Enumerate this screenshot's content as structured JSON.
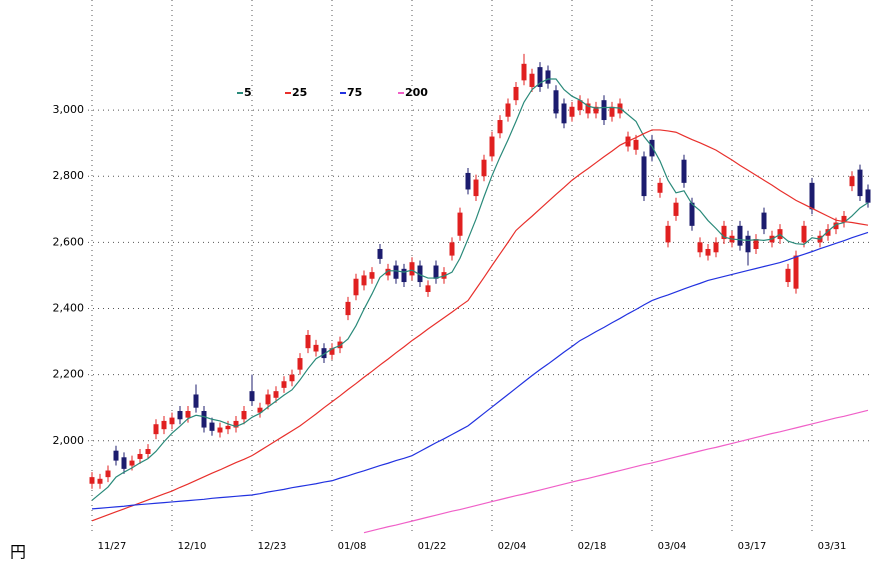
{
  "chart_data": {
    "type": "candlestick",
    "ylabel": "円",
    "ylim": [
      1715,
      3333
    ],
    "yticks": [
      {
        "value": 2000,
        "label": "2,000"
      },
      {
        "value": 2200,
        "label": "2,200"
      },
      {
        "value": 2400,
        "label": "2,400"
      },
      {
        "value": 2600,
        "label": "2,600"
      },
      {
        "value": 2800,
        "label": "2,800"
      },
      {
        "value": 3000,
        "label": "3,000"
      }
    ],
    "grid": true,
    "up_color": "#e02020",
    "down_color": "#1c1c6e",
    "categories": [
      "11/27",
      null,
      null,
      null,
      null,
      null,
      null,
      null,
      null,
      null,
      "12/10",
      null,
      null,
      null,
      null,
      null,
      null,
      null,
      null,
      null,
      "12/23",
      null,
      null,
      null,
      null,
      null,
      null,
      null,
      null,
      null,
      "01/08",
      null,
      null,
      null,
      null,
      null,
      null,
      null,
      null,
      null,
      "01/22",
      null,
      null,
      null,
      null,
      null,
      null,
      null,
      null,
      null,
      "02/04",
      null,
      null,
      null,
      null,
      null,
      null,
      null,
      null,
      null,
      "02/18",
      null,
      null,
      null,
      null,
      null,
      null,
      null,
      null,
      null,
      "03/04",
      null,
      null,
      null,
      null,
      null,
      null,
      null,
      null,
      null,
      "03/17",
      null,
      null,
      null,
      null,
      null,
      null,
      null,
      null,
      null,
      "03/31",
      null,
      null,
      null,
      null,
      null,
      null,
      null
    ],
    "open": [
      1870,
      1870,
      1890,
      1970,
      1950,
      1925,
      1945,
      1960,
      2020,
      2035,
      2050,
      2090,
      2070,
      2140,
      2090,
      2055,
      2025,
      2035,
      2040,
      2065,
      2150,
      2085,
      2110,
      2130,
      2160,
      2180,
      2215,
      2280,
      2270,
      2280,
      2260,
      2280,
      2380,
      2440,
      2470,
      2490,
      2580,
      2500,
      2530,
      2520,
      2500,
      2530,
      2450,
      2530,
      2490,
      2560,
      2620,
      2810,
      2740,
      2800,
      2860,
      2930,
      2980,
      3030,
      3090,
      3070,
      3130,
      3120,
      3060,
      3020,
      2980,
      3000,
      2990,
      2990,
      3030,
      2980,
      2990,
      2890,
      2880,
      2860,
      2910,
      2750,
      2600,
      2680,
      2850,
      2720,
      2570,
      2560,
      2570,
      2610,
      2600,
      2650,
      2620,
      2580,
      2690,
      2600,
      2610,
      2480,
      2460,
      2600,
      2780,
      2600,
      2620,
      2640,
      2660,
      2770,
      2820,
      2760
    ],
    "high": [
      1905,
      1900,
      1925,
      1985,
      1965,
      1955,
      1975,
      1990,
      2065,
      2075,
      2085,
      2105,
      2105,
      2170,
      2105,
      2070,
      2055,
      2060,
      2075,
      2105,
      2200,
      2115,
      2155,
      2165,
      2195,
      2215,
      2265,
      2335,
      2305,
      2295,
      2295,
      2315,
      2435,
      2505,
      2515,
      2525,
      2595,
      2535,
      2545,
      2535,
      2555,
      2545,
      2485,
      2545,
      2525,
      2615,
      2705,
      2825,
      2805,
      2865,
      2935,
      2985,
      3035,
      3085,
      3170,
      3125,
      3145,
      3135,
      3075,
      3035,
      3025,
      3045,
      3035,
      3025,
      3045,
      3025,
      3035,
      2935,
      2925,
      2875,
      2925,
      2795,
      2665,
      2735,
      2865,
      2735,
      2615,
      2595,
      2615,
      2665,
      2635,
      2665,
      2635,
      2625,
      2705,
      2635,
      2655,
      2535,
      2575,
      2665,
      2795,
      2635,
      2655,
      2675,
      2695,
      2815,
      2835,
      2775
    ],
    "low": [
      1855,
      1855,
      1875,
      1925,
      1900,
      1910,
      1930,
      1945,
      2005,
      2020,
      2035,
      2050,
      2055,
      2085,
      2025,
      2015,
      2010,
      2020,
      2025,
      2050,
      2105,
      2070,
      2095,
      2115,
      2145,
      2165,
      2200,
      2265,
      2255,
      2235,
      2245,
      2265,
      2365,
      2425,
      2455,
      2475,
      2535,
      2485,
      2475,
      2465,
      2485,
      2465,
      2435,
      2475,
      2475,
      2545,
      2605,
      2745,
      2725,
      2785,
      2845,
      2915,
      2965,
      3015,
      3075,
      3055,
      3055,
      3065,
      2975,
      2945,
      2965,
      2985,
      2975,
      2975,
      2955,
      2965,
      2975,
      2875,
      2865,
      2725,
      2845,
      2735,
      2585,
      2665,
      2765,
      2635,
      2555,
      2545,
      2555,
      2595,
      2585,
      2575,
      2530,
      2565,
      2625,
      2585,
      2595,
      2465,
      2445,
      2585,
      2685,
      2585,
      2605,
      2625,
      2645,
      2755,
      2725,
      2705
    ],
    "close": [
      1890,
      1885,
      1910,
      1940,
      1915,
      1940,
      1960,
      1975,
      2050,
      2060,
      2070,
      2065,
      2090,
      2100,
      2040,
      2030,
      2040,
      2045,
      2060,
      2090,
      2120,
      2100,
      2140,
      2150,
      2180,
      2200,
      2250,
      2320,
      2290,
      2250,
      2280,
      2300,
      2420,
      2490,
      2500,
      2510,
      2550,
      2520,
      2490,
      2480,
      2540,
      2480,
      2470,
      2490,
      2510,
      2600,
      2690,
      2760,
      2790,
      2850,
      2920,
      2970,
      3020,
      3070,
      3140,
      3110,
      3070,
      3080,
      2990,
      2960,
      3010,
      3030,
      3020,
      3010,
      2970,
      3010,
      3020,
      2920,
      2910,
      2740,
      2860,
      2780,
      2650,
      2720,
      2780,
      2650,
      2600,
      2580,
      2600,
      2650,
      2620,
      2590,
      2570,
      2610,
      2640,
      2620,
      2640,
      2520,
      2560,
      2650,
      2700,
      2620,
      2640,
      2660,
      2680,
      2800,
      2740,
      2720
    ],
    "series": [
      {
        "name": "5",
        "color": "#2a8a7a",
        "values": [
          1820,
          1840,
          1860,
          1890,
          1905,
          1918,
          1933,
          1946,
          1968,
          1997,
          2023,
          2044,
          2067,
          2077,
          2073,
          2065,
          2060,
          2051,
          2043,
          2053,
          2071,
          2083,
          2102,
          2120,
          2138,
          2154,
          2184,
          2218,
          2248,
          2262,
          2278,
          2288,
          2308,
          2348,
          2398,
          2444,
          2494,
          2514,
          2514,
          2510,
          2516,
          2502,
          2492,
          2492,
          2498,
          2510,
          2552,
          2610,
          2670,
          2738,
          2802,
          2858,
          2910,
          2966,
          3024,
          3062,
          3082,
          3094,
          3094,
          3062,
          3042,
          3030,
          3012,
          3006,
          3008,
          3008,
          3006,
          2986,
          2966,
          2920,
          2890,
          2846,
          2788,
          2750,
          2756,
          2716,
          2696,
          2666,
          2642,
          2616,
          2610,
          2608,
          2606,
          2608,
          2606,
          2610,
          2624,
          2604,
          2596,
          2594,
          2614,
          2610,
          2634,
          2654,
          2660,
          2680,
          2704,
          2720
        ]
      },
      {
        "name": "25",
        "color": "#e8302c",
        "values": [
          1758,
          1767,
          1776,
          1785,
          1794,
          1803,
          1812,
          1821,
          1830,
          1839,
          1848,
          1859,
          1869,
          1880,
          1891,
          1902,
          1912,
          1923,
          1934,
          1944,
          1955,
          1970,
          1985,
          2000,
          2015,
          2030,
          2045,
          2063,
          2081,
          2100,
          2118,
          2136,
          2155,
          2173,
          2192,
          2210,
          2229,
          2247,
          2266,
          2284,
          2303,
          2320,
          2338,
          2355,
          2372,
          2389,
          2407,
          2424,
          2459,
          2494,
          2530,
          2565,
          2600,
          2636,
          2658,
          2679,
          2701,
          2723,
          2745,
          2766,
          2788,
          2806,
          2823,
          2841,
          2859,
          2876,
          2894,
          2906,
          2917,
          2929,
          2940,
          2940,
          2937,
          2933,
          2922,
          2911,
          2901,
          2890,
          2879,
          2864,
          2849,
          2833,
          2818,
          2803,
          2788,
          2773,
          2757,
          2742,
          2727,
          2715,
          2703,
          2691,
          2679,
          2667,
          2663,
          2660,
          2656,
          2652
        ]
      },
      {
        "name": "75",
        "color": "#2232e0",
        "values": [
          1794,
          1796,
          1798,
          1800,
          1802,
          1805,
          1807,
          1809,
          1811,
          1813,
          1815,
          1817,
          1819,
          1821,
          1823,
          1826,
          1828,
          1830,
          1832,
          1834,
          1836,
          1840,
          1845,
          1849,
          1853,
          1858,
          1862,
          1866,
          1870,
          1875,
          1879,
          1887,
          1894,
          1902,
          1909,
          1917,
          1925,
          1932,
          1940,
          1947,
          1955,
          1968,
          1981,
          1994,
          2006,
          2019,
          2032,
          2045,
          2064,
          2083,
          2102,
          2121,
          2140,
          2159,
          2178,
          2197,
          2215,
          2232,
          2250,
          2268,
          2285,
          2303,
          2316,
          2330,
          2343,
          2357,
          2370,
          2384,
          2397,
          2411,
          2424,
          2433,
          2441,
          2450,
          2459,
          2468,
          2476,
          2485,
          2491,
          2497,
          2503,
          2509,
          2515,
          2521,
          2527,
          2533,
          2539,
          2547,
          2556,
          2564,
          2572,
          2581,
          2589,
          2597,
          2605,
          2614,
          2622,
          2630
        ]
      },
      {
        "name": "200",
        "color": "#f060c8",
        "values": [
          null,
          null,
          null,
          null,
          null,
          null,
          null,
          null,
          null,
          null,
          null,
          null,
          null,
          null,
          null,
          null,
          null,
          null,
          null,
          null,
          null,
          null,
          null,
          null,
          null,
          null,
          null,
          null,
          null,
          null,
          null,
          null,
          null,
          null,
          1722,
          1728,
          1734,
          1740,
          1745,
          1751,
          1757,
          1763,
          1769,
          1775,
          1781,
          1787,
          1792,
          1798,
          1804,
          1810,
          1816,
          1822,
          1828,
          1834,
          1839,
          1845,
          1851,
          1857,
          1863,
          1869,
          1875,
          1881,
          1886,
          1892,
          1898,
          1904,
          1910,
          1916,
          1922,
          1928,
          1933,
          1939,
          1945,
          1951,
          1957,
          1963,
          1969,
          1975,
          1980,
          1986,
          1992,
          1998,
          2004,
          2010,
          2016,
          2022,
          2027,
          2033,
          2039,
          2045,
          2051,
          2057,
          2063,
          2069,
          2074,
          2080,
          2086,
          2092
        ]
      }
    ]
  }
}
